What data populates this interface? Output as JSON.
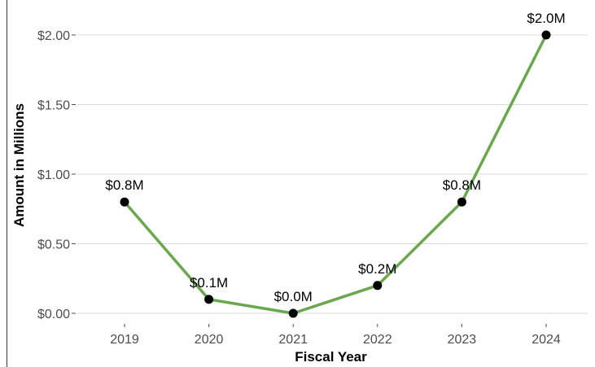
{
  "chart_data": {
    "type": "line",
    "x": [
      "2019",
      "2020",
      "2021",
      "2022",
      "2023",
      "2024"
    ],
    "values": [
      0.8,
      0.1,
      0.0,
      0.2,
      0.8,
      2.0
    ],
    "data_labels": [
      "$0.8M",
      "$0.1M",
      "$0.0M",
      "$0.2M",
      "$0.8M",
      "$2.0M"
    ],
    "xlabel": "Fiscal Year",
    "ylabel": "Amount in Millions",
    "ylim": [
      0,
      2.0
    ],
    "yticks": [
      0,
      0.5,
      1.0,
      1.5,
      2.0
    ],
    "ytick_labels": [
      "$0.00",
      "$0.50",
      "$1.00",
      "$1.50",
      "$2.00"
    ],
    "grid": "horizontal major",
    "legend": "none",
    "colors": {
      "line": "#6aa84f",
      "points": "#000000",
      "grid": "#d9d9d9"
    }
  }
}
